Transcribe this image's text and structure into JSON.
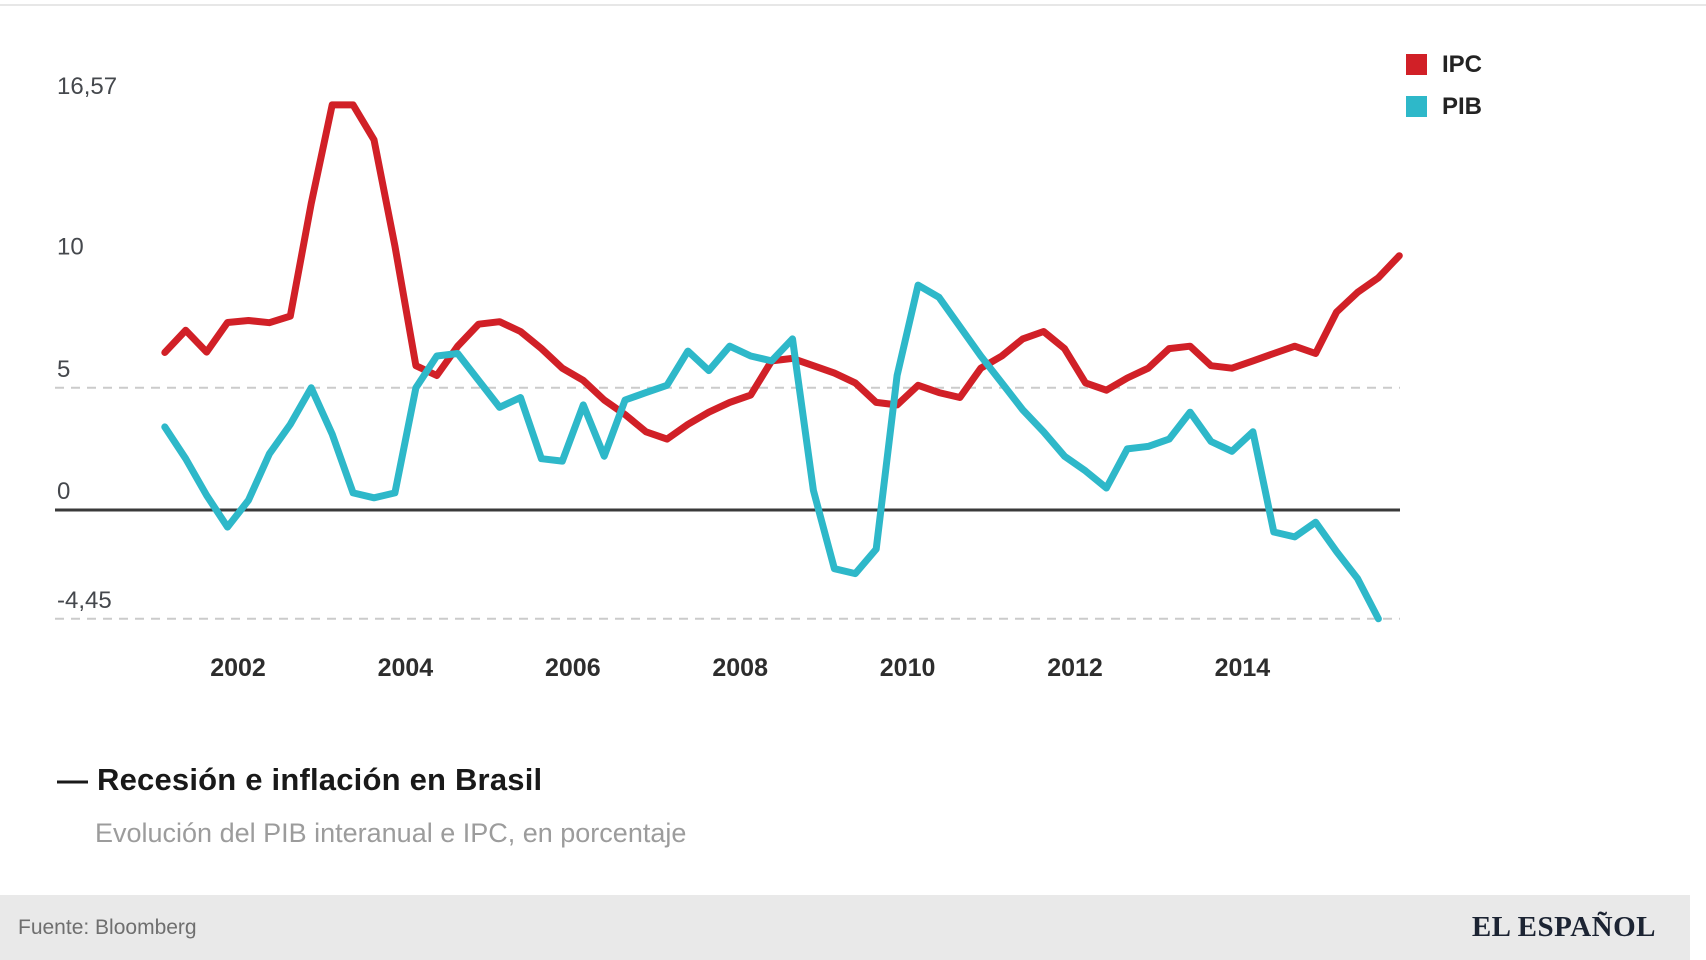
{
  "title": {
    "text": "— Recesión e inflación en Brasil"
  },
  "subtitle": {
    "text": "Evolución del PIB interanual e IPC, en porcentaje"
  },
  "footer": {
    "source": "Fuente: Bloomberg",
    "brand": "EL ESPAÑOL",
    "bg": "#e9e9e9"
  },
  "colors": {
    "ipc": "#d12027",
    "pib": "#2eb8c9",
    "axis": "#3a3a3a",
    "dashed_grid": "#cbcbcb",
    "y_label_text": "#45484d",
    "x_label_text": "#2d2d2d"
  },
  "chart_data": {
    "type": "line",
    "title": "Recesión e inflación en Brasil",
    "subtitle": "Evolución del PIB interanual e IPC, en porcentaje",
    "source": "Fuente: Bloomberg",
    "frequency": "quarterly",
    "start": {
      "year": 2001,
      "quarter": 1
    },
    "x_ticks": [
      2002,
      2004,
      2006,
      2008,
      2010,
      2012,
      2014
    ],
    "x_range_years": [
      2001,
      2016
    ],
    "ylim": [
      -5.5,
      18
    ],
    "grid": "dashed-at-5-and-min, solid-at-0",
    "legend_position": "top-right",
    "y_axis": [
      {
        "value": 16.57,
        "label": "16,57",
        "line": "none"
      },
      {
        "value": 10,
        "label": "10",
        "line": "none"
      },
      {
        "value": 5,
        "label": "5",
        "line": "dashed"
      },
      {
        "value": 0,
        "label": "0",
        "line": "solid"
      },
      {
        "value": -4.45,
        "label": "-4,45",
        "line": "dashed"
      }
    ],
    "series": [
      {
        "name": "IPC",
        "color": "#d12027",
        "values": [
          6.44,
          7.35,
          6.46,
          7.67,
          7.75,
          7.66,
          7.93,
          12.53,
          16.57,
          16.57,
          15.14,
          10.8,
          5.9,
          5.5,
          6.7,
          7.6,
          7.7,
          7.3,
          6.6,
          5.8,
          5.3,
          4.5,
          3.9,
          3.2,
          2.9,
          3.5,
          4.0,
          4.4,
          4.7,
          6.1,
          6.2,
          5.9,
          5.6,
          5.2,
          4.4,
          4.3,
          5.1,
          4.8,
          4.6,
          5.8,
          6.3,
          7.0,
          7.3,
          6.6,
          5.2,
          4.9,
          5.4,
          5.8,
          6.6,
          6.7,
          5.9,
          5.8,
          6.1,
          6.4,
          6.7,
          6.4,
          8.1,
          8.9,
          9.5,
          10.4
        ]
      },
      {
        "name": "PIB",
        "color": "#2eb8c9",
        "values": [
          3.4,
          2.1,
          0.6,
          -0.7,
          0.4,
          2.3,
          3.5,
          5.0,
          3.1,
          0.7,
          0.5,
          0.7,
          5.0,
          6.3,
          6.4,
          5.3,
          4.2,
          4.6,
          2.1,
          2.0,
          4.3,
          2.2,
          4.5,
          4.8,
          5.1,
          6.5,
          5.7,
          6.7,
          6.3,
          6.1,
          7.0,
          0.8,
          -2.4,
          -2.6,
          -1.6,
          5.5,
          9.2,
          8.7,
          7.5,
          6.3,
          5.2,
          4.1,
          3.2,
          2.2,
          1.6,
          0.9,
          2.5,
          2.6,
          2.9,
          4.0,
          2.8,
          2.4,
          3.2,
          -0.9,
          -1.1,
          -0.5,
          -1.7,
          -2.8,
          -4.45
        ]
      }
    ]
  }
}
